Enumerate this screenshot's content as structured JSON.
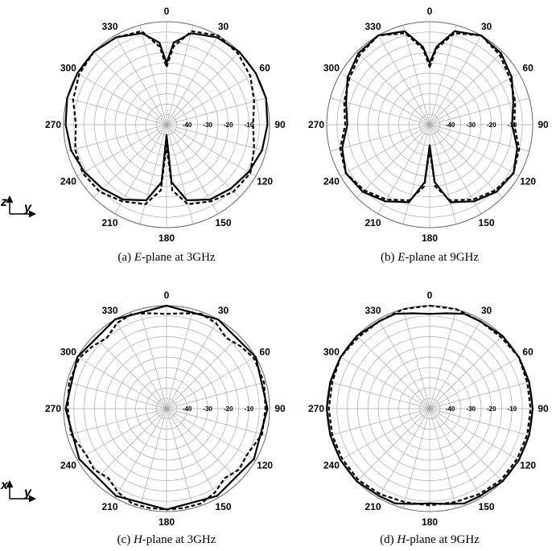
{
  "chart_data": [
    {
      "type": "polar-line",
      "caption": {
        "label": "(a) ",
        "plane": "E",
        "text": "-plane at 3GHz"
      },
      "angle_labels": [
        "0",
        "30",
        "60",
        "90",
        "120",
        "150",
        "180",
        "210",
        "240",
        "270",
        "300",
        "330"
      ],
      "radial_labels": [
        "-40",
        "-30",
        "-20",
        "-10"
      ],
      "r_range_db": [
        -50,
        0
      ],
      "grid": true,
      "series": [
        {
          "style": "solid",
          "theta_deg": [
            0,
            5,
            15,
            30,
            45,
            60,
            75,
            90,
            105,
            120,
            135,
            150,
            165,
            175,
            180,
            185,
            195,
            210,
            225,
            240,
            255,
            270,
            285,
            300,
            315,
            330,
            345,
            355
          ],
          "r_db": [
            -20,
            -10,
            -4,
            -1,
            0,
            0,
            0,
            -1,
            -2,
            -4,
            -6,
            -8,
            -12,
            -22,
            -45,
            -22,
            -12,
            -8,
            -6,
            -4,
            -2,
            -1,
            0,
            0,
            0,
            -1,
            -4,
            -10
          ]
        },
        {
          "style": "dashed",
          "theta_deg": [
            0,
            5,
            15,
            30,
            45,
            60,
            75,
            90,
            105,
            120,
            135,
            150,
            165,
            175,
            180,
            185,
            195,
            210,
            225,
            240,
            255,
            270,
            285,
            300,
            315,
            330,
            345,
            355
          ],
          "r_db": [
            -22,
            -12,
            -3,
            0,
            -1,
            -3,
            -6,
            -8,
            -6,
            -3,
            -4,
            -7,
            -10,
            -18,
            -40,
            -18,
            -10,
            -7,
            -4,
            -3,
            -4,
            -6,
            -3,
            -1,
            0,
            -1,
            -3,
            -12
          ]
        }
      ]
    },
    {
      "type": "polar-line",
      "caption": {
        "label": "(b) ",
        "plane": "E",
        "text": "-plane at 9GHz"
      },
      "angle_labels": [
        "0",
        "30",
        "60",
        "90",
        "120",
        "150",
        "180",
        "210",
        "240",
        "270",
        "300",
        "330"
      ],
      "radial_labels": [
        "-40",
        "-30",
        "-20",
        "-10"
      ],
      "r_range_db": [
        -50,
        0
      ],
      "grid": true,
      "series": [
        {
          "style": "solid",
          "theta_deg": [
            0,
            5,
            15,
            30,
            45,
            60,
            75,
            90,
            105,
            120,
            135,
            150,
            165,
            175,
            180,
            185,
            195,
            210,
            225,
            240,
            255,
            270,
            285,
            300,
            315,
            330,
            345,
            355
          ],
          "r_db": [
            -20,
            -12,
            -3,
            0,
            -1,
            -4,
            -8,
            -10,
            -6,
            -3,
            -4,
            -7,
            -11,
            -22,
            -40,
            -22,
            -11,
            -7,
            -4,
            -3,
            -6,
            -10,
            -8,
            -4,
            -1,
            0,
            -3,
            -12
          ]
        },
        {
          "style": "dashed",
          "theta_deg": [
            0,
            5,
            15,
            30,
            45,
            60,
            75,
            90,
            105,
            120,
            135,
            150,
            165,
            175,
            180,
            185,
            195,
            210,
            225,
            240,
            255,
            270,
            285,
            300,
            315,
            330,
            345,
            355
          ],
          "r_db": [
            -22,
            -13,
            -4,
            0,
            -2,
            -5,
            -7,
            -9,
            -5,
            -3,
            -5,
            -8,
            -12,
            -20,
            -38,
            -20,
            -12,
            -8,
            -5,
            -3,
            -5,
            -9,
            -7,
            -5,
            -2,
            0,
            -4,
            -13
          ]
        }
      ]
    },
    {
      "type": "polar-line",
      "caption": {
        "label": "(c) ",
        "plane": "H",
        "text": "-plane at 3GHz"
      },
      "angle_labels": [
        "0",
        "30",
        "60",
        "90",
        "120",
        "150",
        "180",
        "210",
        "240",
        "270",
        "300",
        "330"
      ],
      "radial_labels": [
        "-40",
        "-30",
        "-20",
        "-10"
      ],
      "r_range_db": [
        -50,
        0
      ],
      "grid": true,
      "series": [
        {
          "style": "solid",
          "theta_deg": [
            0,
            30,
            60,
            90,
            120,
            150,
            180,
            210,
            240,
            270,
            300,
            330
          ],
          "r_db": [
            0,
            0,
            0,
            -1,
            -1,
            -1,
            -1,
            -1,
            -1,
            -1,
            0,
            0
          ]
        },
        {
          "style": "dashed",
          "theta_deg": [
            0,
            10,
            20,
            30,
            40,
            50,
            60,
            75,
            90,
            105,
            120,
            130,
            140,
            150,
            160,
            170,
            180,
            190,
            200,
            210,
            220,
            230,
            240,
            255,
            270,
            285,
            300,
            310,
            320,
            330,
            340,
            350
          ],
          "r_db": [
            -4,
            -3,
            -1,
            -2,
            -5,
            -3,
            -1,
            -1,
            -2,
            -2,
            -5,
            -4,
            -6,
            -3,
            -1,
            -1,
            -1,
            -1,
            -1,
            -3,
            -6,
            -4,
            -5,
            -2,
            -2,
            -1,
            -1,
            -3,
            -5,
            -2,
            -1,
            -3
          ]
        }
      ]
    },
    {
      "type": "polar-line",
      "caption": {
        "label": "(d) ",
        "plane": "H",
        "text": "-plane at 9GHz"
      },
      "angle_labels": [
        "0",
        "30",
        "60",
        "90",
        "120",
        "150",
        "180",
        "210",
        "240",
        "270",
        "300",
        "330"
      ],
      "radial_labels": [
        "-40",
        "-30",
        "-20",
        "-10"
      ],
      "r_range_db": [
        -50,
        0
      ],
      "grid": true,
      "series": [
        {
          "style": "solid",
          "theta_deg": [
            0,
            10,
            20,
            30,
            45,
            60,
            75,
            90,
            105,
            120,
            135,
            150,
            160,
            170,
            180,
            190,
            200,
            210,
            225,
            240,
            255,
            270,
            285,
            300,
            315,
            330,
            340,
            350
          ],
          "r_db": [
            -4,
            -3,
            -1,
            -1,
            0,
            0,
            0,
            0,
            0,
            0,
            0,
            -1,
            -1,
            -3,
            -4,
            -3,
            -1,
            -1,
            0,
            0,
            0,
            0,
            0,
            0,
            0,
            -1,
            -1,
            -3
          ]
        },
        {
          "style": "dashed",
          "theta_deg": [
            0,
            15,
            30,
            45,
            60,
            75,
            90,
            105,
            120,
            135,
            150,
            165,
            180,
            195,
            210,
            225,
            240,
            255,
            270,
            285,
            300,
            315,
            330,
            345
          ],
          "r_db": [
            0,
            0,
            -1,
            -1,
            0,
            -1,
            -1,
            -1,
            -1,
            -1,
            -2,
            -3,
            -3,
            -3,
            -2,
            -1,
            -1,
            -1,
            -1,
            -1,
            0,
            -1,
            -1,
            0
          ]
        }
      ]
    }
  ],
  "axis_labels": [
    {
      "vertical": "z",
      "horizontal": "y"
    },
    {
      "vertical": "x",
      "horizontal": "y"
    }
  ]
}
